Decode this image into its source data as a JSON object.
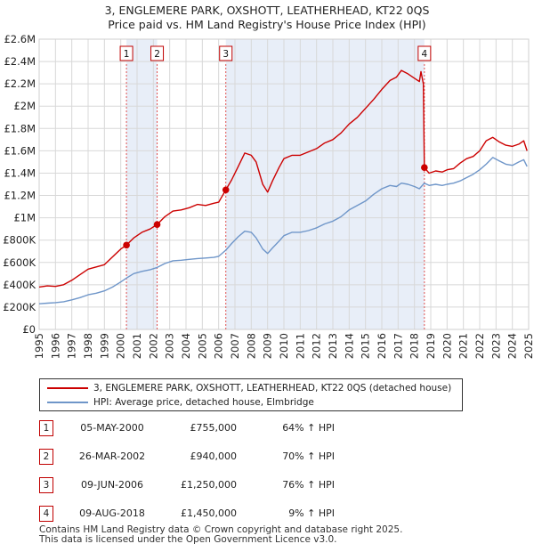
{
  "title": "3, ENGLEMERE PARK, OXSHOTT, LEATHERHEAD, KT22 0QS",
  "subtitle": "Price paid vs. HM Land Registry's House Price Index (HPI)",
  "colors": {
    "property": "#cc0000",
    "hpi": "#6f96c9",
    "shade": "#e8eef8",
    "grid": "#d8d8d8"
  },
  "chart_data": {
    "type": "line",
    "xlim": [
      1995,
      2025
    ],
    "ylim": [
      0,
      2600000
    ],
    "y_ticks": [
      {
        "value": 0,
        "label": "£0"
      },
      {
        "value": 200000,
        "label": "£200K"
      },
      {
        "value": 400000,
        "label": "£400K"
      },
      {
        "value": 600000,
        "label": "£600K"
      },
      {
        "value": 800000,
        "label": "£800K"
      },
      {
        "value": 1000000,
        "label": "£1M"
      },
      {
        "value": 1200000,
        "label": "£1.2M"
      },
      {
        "value": 1400000,
        "label": "£1.4M"
      },
      {
        "value": 1600000,
        "label": "£1.6M"
      },
      {
        "value": 1800000,
        "label": "£1.8M"
      },
      {
        "value": 2000000,
        "label": "£2M"
      },
      {
        "value": 2200000,
        "label": "£2.2M"
      },
      {
        "value": 2400000,
        "label": "£2.4M"
      },
      {
        "value": 2600000,
        "label": "£2.6M"
      }
    ],
    "x_ticks": [
      "1995",
      "1996",
      "1997",
      "1998",
      "1999",
      "2000",
      "2001",
      "2002",
      "2003",
      "2004",
      "2005",
      "2006",
      "2007",
      "2008",
      "2009",
      "2010",
      "2011",
      "2012",
      "2013",
      "2014",
      "2015",
      "2016",
      "2017",
      "2018",
      "2019",
      "2020",
      "2021",
      "2022",
      "2023",
      "2024",
      "2025"
    ],
    "shaded_ranges": [
      [
        2000.35,
        2002.23
      ],
      [
        2006.44,
        2018.61
      ]
    ],
    "series": [
      {
        "name": "3, ENGLEMERE PARK, OXSHOTT, LEATHERHEAD, KT22 0QS (detached house)",
        "points": [
          [
            1995.0,
            380000
          ],
          [
            1995.5,
            390000
          ],
          [
            1996.0,
            385000
          ],
          [
            1996.5,
            400000
          ],
          [
            1997.0,
            440000
          ],
          [
            1997.5,
            490000
          ],
          [
            1998.0,
            540000
          ],
          [
            1998.5,
            560000
          ],
          [
            1999.0,
            580000
          ],
          [
            1999.5,
            650000
          ],
          [
            2000.0,
            720000
          ],
          [
            2000.35,
            755000
          ],
          [
            2000.8,
            820000
          ],
          [
            2001.3,
            870000
          ],
          [
            2001.8,
            900000
          ],
          [
            2002.23,
            940000
          ],
          [
            2002.7,
            1010000
          ],
          [
            2003.2,
            1060000
          ],
          [
            2003.7,
            1070000
          ],
          [
            2004.2,
            1090000
          ],
          [
            2004.7,
            1120000
          ],
          [
            2005.2,
            1110000
          ],
          [
            2005.7,
            1130000
          ],
          [
            2006.0,
            1140000
          ],
          [
            2006.44,
            1250000
          ],
          [
            2006.8,
            1340000
          ],
          [
            2007.2,
            1460000
          ],
          [
            2007.6,
            1580000
          ],
          [
            2008.0,
            1560000
          ],
          [
            2008.3,
            1500000
          ],
          [
            2008.7,
            1300000
          ],
          [
            2009.0,
            1230000
          ],
          [
            2009.3,
            1330000
          ],
          [
            2009.7,
            1450000
          ],
          [
            2010.0,
            1530000
          ],
          [
            2010.5,
            1560000
          ],
          [
            2011.0,
            1560000
          ],
          [
            2011.5,
            1590000
          ],
          [
            2012.0,
            1620000
          ],
          [
            2012.5,
            1670000
          ],
          [
            2013.0,
            1700000
          ],
          [
            2013.5,
            1760000
          ],
          [
            2014.0,
            1840000
          ],
          [
            2014.5,
            1900000
          ],
          [
            2015.0,
            1980000
          ],
          [
            2015.5,
            2060000
          ],
          [
            2016.0,
            2150000
          ],
          [
            2016.5,
            2230000
          ],
          [
            2016.9,
            2260000
          ],
          [
            2017.2,
            2320000
          ],
          [
            2017.6,
            2290000
          ],
          [
            2018.0,
            2250000
          ],
          [
            2018.3,
            2220000
          ],
          [
            2018.4,
            2310000
          ],
          [
            2018.55,
            2200000
          ],
          [
            2018.61,
            1450000
          ],
          [
            2018.9,
            1400000
          ],
          [
            2019.3,
            1420000
          ],
          [
            2019.7,
            1410000
          ],
          [
            2020.0,
            1430000
          ],
          [
            2020.4,
            1440000
          ],
          [
            2020.8,
            1490000
          ],
          [
            2021.2,
            1530000
          ],
          [
            2021.6,
            1550000
          ],
          [
            2022.0,
            1600000
          ],
          [
            2022.4,
            1690000
          ],
          [
            2022.8,
            1720000
          ],
          [
            2023.2,
            1680000
          ],
          [
            2023.6,
            1650000
          ],
          [
            2024.0,
            1640000
          ],
          [
            2024.4,
            1660000
          ],
          [
            2024.7,
            1690000
          ],
          [
            2024.9,
            1600000
          ]
        ]
      },
      {
        "name": "HPI: Average price, detached house, Elmbridge",
        "points": [
          [
            1995.0,
            230000
          ],
          [
            1995.5,
            235000
          ],
          [
            1996.0,
            240000
          ],
          [
            1996.5,
            248000
          ],
          [
            1997.0,
            265000
          ],
          [
            1997.5,
            285000
          ],
          [
            1998.0,
            310000
          ],
          [
            1998.5,
            325000
          ],
          [
            1999.0,
            345000
          ],
          [
            1999.5,
            380000
          ],
          [
            2000.0,
            425000
          ],
          [
            2000.35,
            460000
          ],
          [
            2000.8,
            500000
          ],
          [
            2001.3,
            520000
          ],
          [
            2001.8,
            535000
          ],
          [
            2002.23,
            555000
          ],
          [
            2002.7,
            590000
          ],
          [
            2003.2,
            615000
          ],
          [
            2003.7,
            620000
          ],
          [
            2004.2,
            628000
          ],
          [
            2004.7,
            635000
          ],
          [
            2005.2,
            640000
          ],
          [
            2005.7,
            645000
          ],
          [
            2006.0,
            655000
          ],
          [
            2006.44,
            710000
          ],
          [
            2006.8,
            770000
          ],
          [
            2007.2,
            830000
          ],
          [
            2007.6,
            880000
          ],
          [
            2008.0,
            870000
          ],
          [
            2008.3,
            820000
          ],
          [
            2008.7,
            720000
          ],
          [
            2009.0,
            680000
          ],
          [
            2009.3,
            730000
          ],
          [
            2009.7,
            790000
          ],
          [
            2010.0,
            840000
          ],
          [
            2010.5,
            870000
          ],
          [
            2011.0,
            870000
          ],
          [
            2011.5,
            885000
          ],
          [
            2012.0,
            910000
          ],
          [
            2012.5,
            945000
          ],
          [
            2013.0,
            970000
          ],
          [
            2013.5,
            1010000
          ],
          [
            2014.0,
            1070000
          ],
          [
            2014.5,
            1110000
          ],
          [
            2015.0,
            1150000
          ],
          [
            2015.5,
            1210000
          ],
          [
            2016.0,
            1260000
          ],
          [
            2016.5,
            1290000
          ],
          [
            2016.9,
            1280000
          ],
          [
            2017.2,
            1310000
          ],
          [
            2017.6,
            1300000
          ],
          [
            2018.0,
            1280000
          ],
          [
            2018.3,
            1260000
          ],
          [
            2018.61,
            1310000
          ],
          [
            2018.9,
            1290000
          ],
          [
            2019.3,
            1300000
          ],
          [
            2019.7,
            1290000
          ],
          [
            2020.0,
            1300000
          ],
          [
            2020.4,
            1310000
          ],
          [
            2020.8,
            1330000
          ],
          [
            2021.2,
            1360000
          ],
          [
            2021.6,
            1390000
          ],
          [
            2022.0,
            1430000
          ],
          [
            2022.4,
            1480000
          ],
          [
            2022.8,
            1540000
          ],
          [
            2023.2,
            1510000
          ],
          [
            2023.6,
            1480000
          ],
          [
            2024.0,
            1470000
          ],
          [
            2024.4,
            1500000
          ],
          [
            2024.7,
            1520000
          ],
          [
            2024.9,
            1460000
          ]
        ]
      }
    ],
    "sales": [
      {
        "id": "1",
        "x": 2000.35,
        "value": 755000
      },
      {
        "id": "2",
        "x": 2002.23,
        "value": 940000
      },
      {
        "id": "3",
        "x": 2006.44,
        "value": 1250000
      },
      {
        "id": "4",
        "x": 2018.61,
        "value": 1450000
      }
    ]
  },
  "legend": {
    "property": "3, ENGLEMERE PARK, OXSHOTT, LEATHERHEAD, KT22 0QS (detached house)",
    "hpi": "HPI: Average price, detached house, Elmbridge"
  },
  "sales_table": [
    {
      "id": "1",
      "date": "05-MAY-2000",
      "price": "£755,000",
      "hpi": "64% ↑ HPI"
    },
    {
      "id": "2",
      "date": "26-MAR-2002",
      "price": "£940,000",
      "hpi": "70% ↑ HPI"
    },
    {
      "id": "3",
      "date": "09-JUN-2006",
      "price": "£1,250,000",
      "hpi": "76% ↑ HPI"
    },
    {
      "id": "4",
      "date": "09-AUG-2018",
      "price": "£1,450,000",
      "hpi": "9% ↑ HPI"
    }
  ],
  "footer": {
    "line1": "Contains HM Land Registry data © Crown copyright and database right 2025.",
    "line2": "This data is licensed under the Open Government Licence v3.0."
  }
}
